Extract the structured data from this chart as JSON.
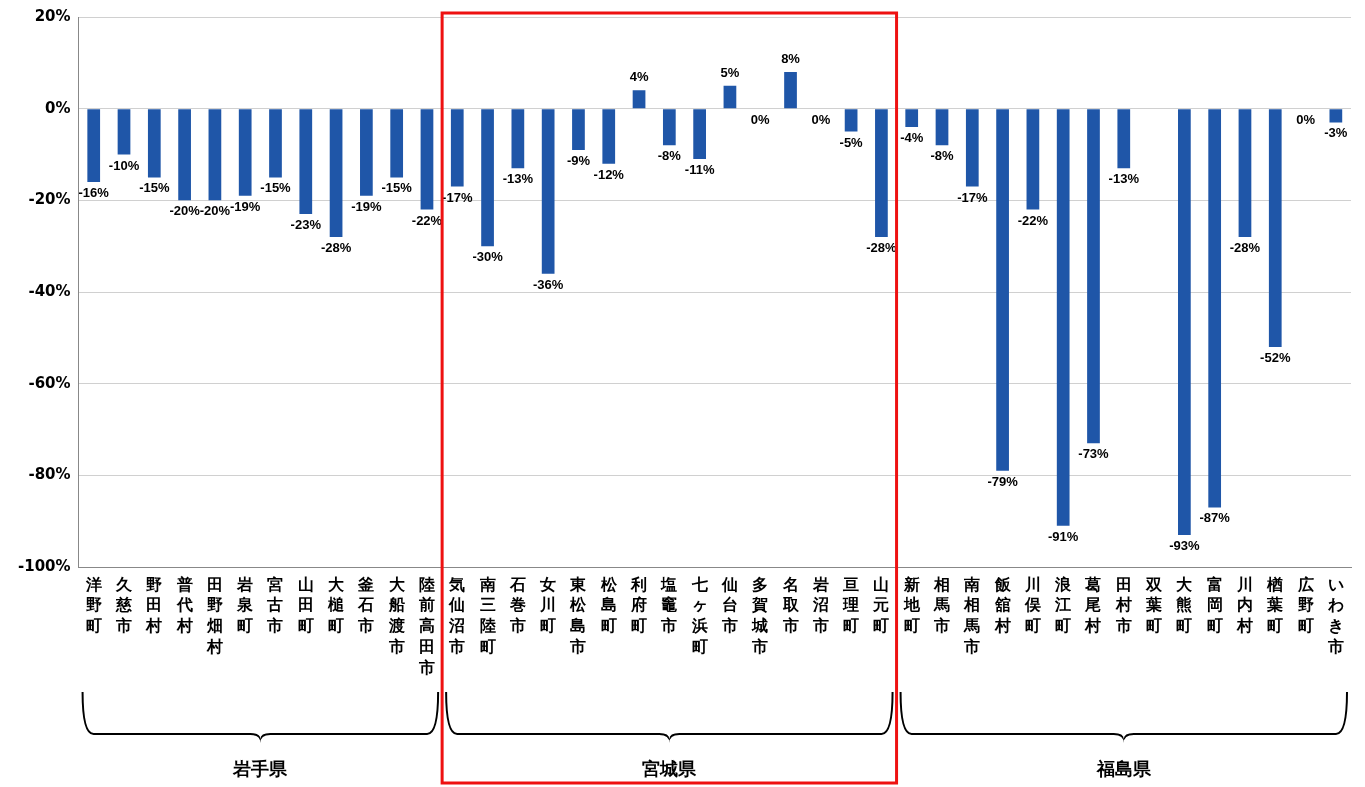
{
  "chart_data": {
    "type": "bar",
    "categories": [
      "洋野町",
      "久慈市",
      "野田村",
      "普代村",
      "田野畑村",
      "岩泉町",
      "宮古市",
      "山田町",
      "大槌町",
      "釜石市",
      "大船渡市",
      "陸前高田市",
      "気仙沼市",
      "南三陸町",
      "石巻市",
      "女川町",
      "東松島市",
      "松島町",
      "利府町",
      "塩竈市",
      "七ヶ浜町",
      "仙台市",
      "多賀城市",
      "名取市",
      "岩沼市",
      "亘理町",
      "山元町",
      "新地町",
      "相馬市",
      "南相馬市",
      "飯舘村",
      "川俣町",
      "浪江町",
      "葛尾村",
      "田村市",
      "双葉町",
      "大熊町",
      "富岡町",
      "川内村",
      "楢葉町",
      "広野町",
      "いわき市"
    ],
    "values": [
      -16,
      -10,
      -15,
      -20,
      -20,
      -19,
      -15,
      -23,
      -28,
      -19,
      -15,
      -22,
      -17,
      -30,
      -13,
      -36,
      -9,
      -12,
      4,
      -8,
      -11,
      5,
      0,
      8,
      0,
      -5,
      -28,
      -4,
      -8,
      -17,
      -79,
      -22,
      -91,
      -73,
      -13,
      null,
      -93,
      -87,
      -28,
      -52,
      0,
      -3
    ],
    "value_labels": [
      "-16%",
      "-10%",
      "-15%",
      "-20%",
      "-20%",
      "-19%",
      "-15%",
      "-23%",
      "-28%",
      "-19%",
      "-15%",
      "-22%",
      "-17%",
      "-30%",
      "-13%",
      "-36%",
      "-9%",
      "-12%",
      "4%",
      "-8%",
      "-11%",
      "5%",
      "0%",
      "8%",
      "0%",
      "-5%",
      "-28%",
      "-4%",
      "-8%",
      "-17%",
      "-79%",
      "-22%",
      "-91%",
      "-73%",
      "-13%",
      null,
      "-93%",
      "-87%",
      "-28%",
      "-52%",
      "0%",
      "-3%"
    ],
    "color": "#1f56a8",
    "ylim": [
      -100,
      20
    ],
    "yticks": [
      {
        "value": -100,
        "label": "-100%"
      },
      {
        "value": -80,
        "label": "-80%"
      },
      {
        "value": -60,
        "label": "-60%"
      },
      {
        "value": -40,
        "label": "-40%"
      },
      {
        "value": -20,
        "label": "-20%"
      },
      {
        "value": 0,
        "label": "0%"
      },
      {
        "value": 20,
        "label": "20%"
      }
    ],
    "grid": "y",
    "legend": false,
    "annotations": [
      "岩手県",
      "宮城県",
      "福島県"
    ]
  }
}
